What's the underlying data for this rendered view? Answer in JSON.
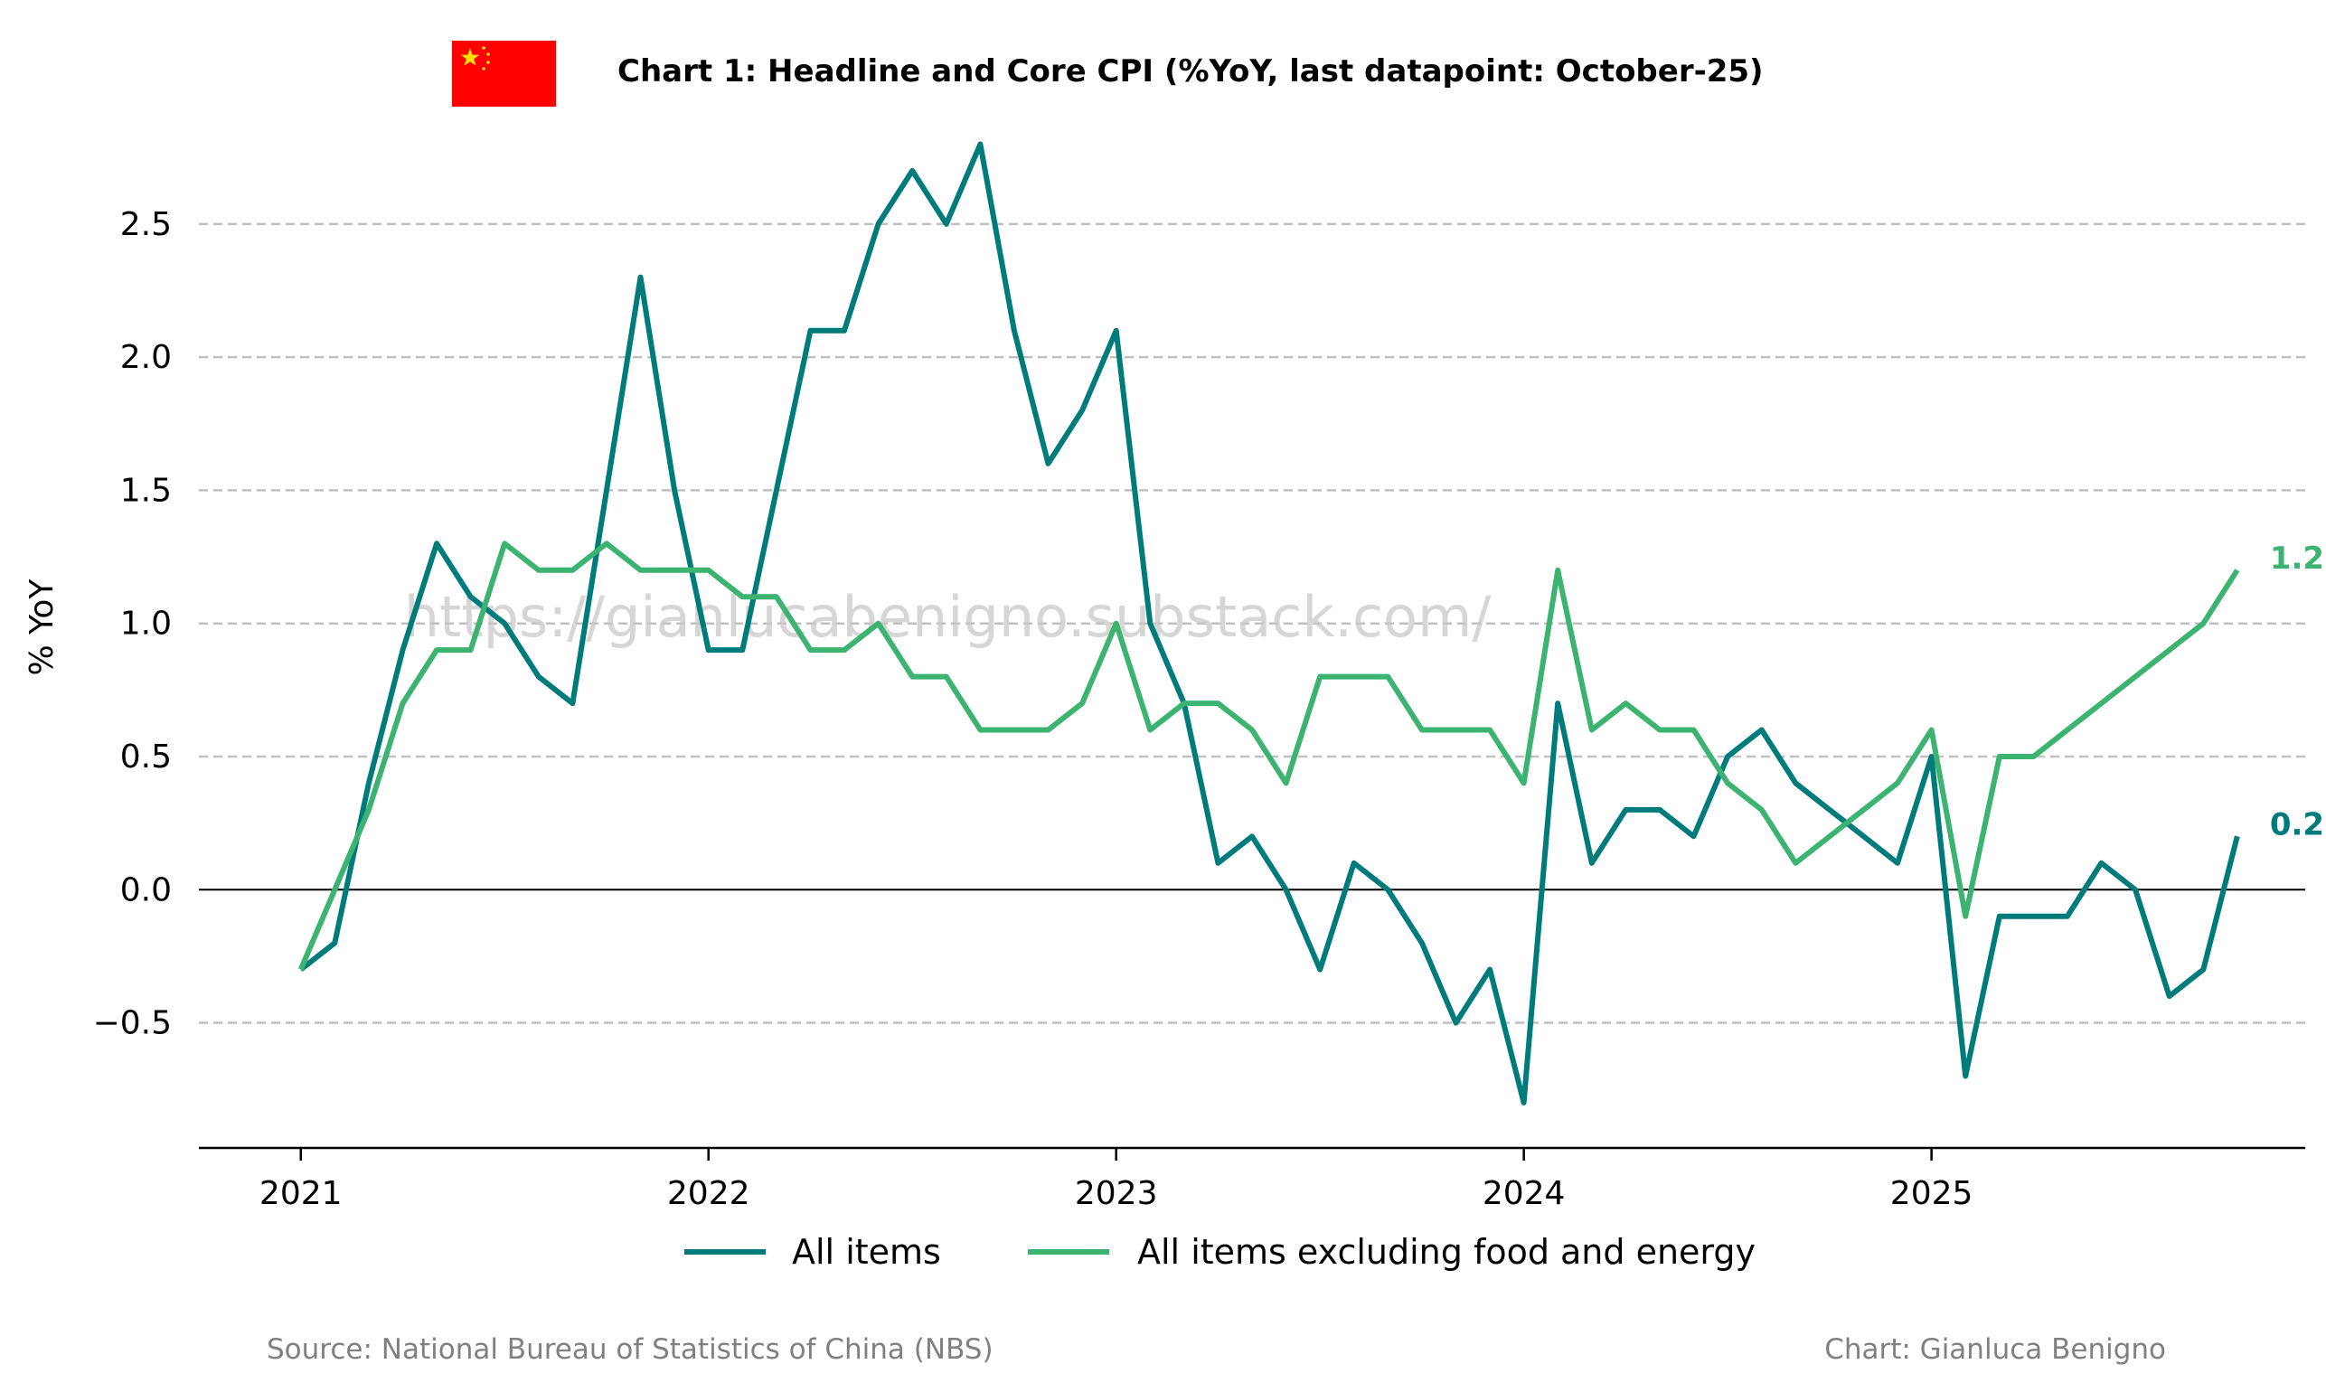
{
  "chart_data": {
    "type": "line",
    "title": "Chart 1: Headline and Core CPI (%YoY, last datapoint: October-25)",
    "ylabel": "% YoY",
    "xlabel": "",
    "ylim": [
      -0.97,
      2.9
    ],
    "yticks": [
      -0.5,
      0.0,
      0.5,
      1.0,
      1.5,
      2.0,
      2.5
    ],
    "ytick_labels": [
      "−0.5",
      "0.0",
      "0.5",
      "1.0",
      "1.5",
      "2.0",
      "2.5"
    ],
    "xticks": [
      "2021",
      "2022",
      "2023",
      "2024",
      "2025"
    ],
    "xlim": [
      "2020-10",
      "2025-12"
    ],
    "grid": "horizontal dashed",
    "zero_line": true,
    "legend_position": "bottom-center",
    "x": [
      "2021-01",
      "2021-02",
      "2021-03",
      "2021-04",
      "2021-05",
      "2021-06",
      "2021-07",
      "2021-08",
      "2021-09",
      "2021-10",
      "2021-11",
      "2021-12",
      "2022-01",
      "2022-02",
      "2022-03",
      "2022-04",
      "2022-05",
      "2022-06",
      "2022-07",
      "2022-08",
      "2022-09",
      "2022-10",
      "2022-11",
      "2022-12",
      "2023-01",
      "2023-02",
      "2023-03",
      "2023-04",
      "2023-05",
      "2023-06",
      "2023-07",
      "2023-08",
      "2023-09",
      "2023-10",
      "2023-11",
      "2023-12",
      "2024-01",
      "2024-02",
      "2024-03",
      "2024-04",
      "2024-05",
      "2024-06",
      "2024-07",
      "2024-08",
      "2024-09",
      "2024-10",
      "2024-11",
      "2024-12",
      "2025-01",
      "2025-02",
      "2025-03",
      "2025-04",
      "2025-05",
      "2025-06",
      "2025-07",
      "2025-08",
      "2025-09",
      "2025-10"
    ],
    "series": [
      {
        "name": "All items",
        "color": "#007b7b",
        "end_label": "0.2",
        "values": [
          -0.3,
          -0.2,
          0.4,
          0.9,
          1.3,
          1.1,
          1.0,
          0.8,
          0.7,
          1.5,
          2.3,
          1.5,
          0.9,
          0.9,
          1.5,
          2.1,
          2.1,
          2.5,
          2.7,
          2.5,
          2.8,
          2.1,
          1.6,
          1.8,
          2.1,
          1.0,
          0.7,
          0.1,
          0.2,
          0.0,
          -0.3,
          0.1,
          0.0,
          -0.2,
          -0.5,
          -0.3,
          -0.8,
          0.7,
          0.1,
          0.3,
          0.3,
          0.2,
          0.5,
          0.6,
          0.4,
          0.3,
          0.2,
          0.1,
          0.5,
          -0.7,
          -0.1,
          -0.1,
          -0.1,
          0.1,
          0.0,
          -0.4,
          -0.3,
          0.2
        ]
      },
      {
        "name": "All items excluding food and energy",
        "color": "#3cb371",
        "end_label": "1.2",
        "values": [
          -0.3,
          0.0,
          0.3,
          0.7,
          0.9,
          0.9,
          1.3,
          1.2,
          1.2,
          1.3,
          1.2,
          1.2,
          1.2,
          1.1,
          1.1,
          0.9,
          0.9,
          1.0,
          0.8,
          0.8,
          0.6,
          0.6,
          0.6,
          0.7,
          1.0,
          0.6,
          0.7,
          0.7,
          0.6,
          0.4,
          0.8,
          0.8,
          0.8,
          0.6,
          0.6,
          0.6,
          0.4,
          1.2,
          0.6,
          0.7,
          0.6,
          0.6,
          0.4,
          0.3,
          0.1,
          0.2,
          0.3,
          0.4,
          0.6,
          -0.1,
          0.5,
          0.5,
          0.6,
          0.7,
          0.8,
          0.9,
          1.0,
          1.2
        ]
      }
    ]
  },
  "watermark": "https://gianlucabenigno.substack.com/",
  "footer": {
    "source": "Source: National Bureau of Statistics of China (NBS)",
    "credit": "Chart: Gianluca Benigno"
  },
  "colors": {
    "flag_red": "#ff0000",
    "flag_star": "#ffde00",
    "grid": "#c0c0c0",
    "axis": "#000000"
  },
  "icons": {
    "flag": "china-flag-icon"
  }
}
